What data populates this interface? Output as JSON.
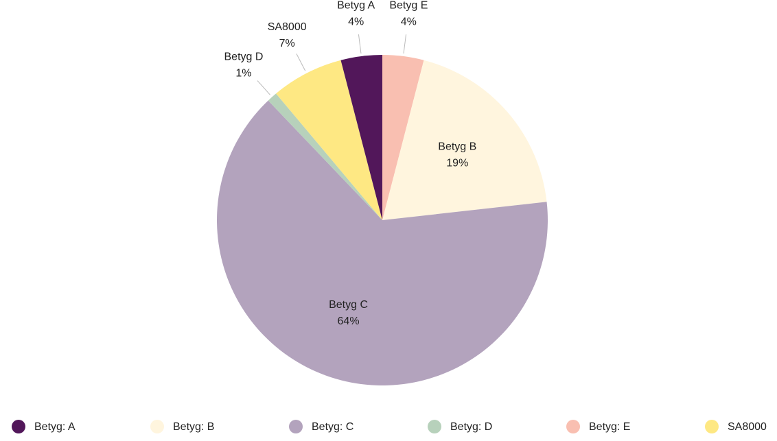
{
  "chart_data": {
    "type": "pie",
    "categories": [
      "Betyg E",
      "Betyg B",
      "Betyg C",
      "Betyg D",
      "SA8000",
      "Betyg A"
    ],
    "values": [
      4,
      19,
      64,
      1,
      7,
      4
    ],
    "value_labels": [
      "4%",
      "19%",
      "64%",
      "1%",
      "7%",
      "4%"
    ],
    "colors": [
      "#f9bfb1",
      "#fff5de",
      "#b3a3bd",
      "#b7d1bb",
      "#fee883",
      "#52175a"
    ],
    "legend": [
      {
        "name": "Betyg: A",
        "color": "#52175a"
      },
      {
        "name": "Betyg: B",
        "color": "#fff5de"
      },
      {
        "name": "Betyg: C",
        "color": "#b3a3bd"
      },
      {
        "name": "Betyg: D",
        "color": "#b7d1bb"
      },
      {
        "name": "Betyg: E",
        "color": "#f9bfb1"
      },
      {
        "name": "SA8000",
        "color": "#fee883"
      }
    ],
    "legend_position": "bottom"
  }
}
